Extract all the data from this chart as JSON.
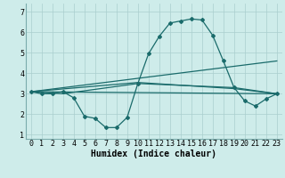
{
  "xlabel": "Humidex (Indice chaleur)",
  "x": [
    0,
    1,
    2,
    3,
    4,
    5,
    6,
    7,
    8,
    9,
    10,
    11,
    12,
    13,
    14,
    15,
    16,
    17,
    18,
    19,
    20,
    21,
    22,
    23
  ],
  "line1": [
    3.1,
    3.0,
    3.0,
    3.1,
    2.8,
    1.9,
    1.8,
    1.35,
    1.35,
    1.85,
    3.5,
    4.95,
    5.8,
    6.45,
    6.55,
    6.65,
    6.6,
    5.85,
    4.6,
    3.3,
    2.65,
    2.4,
    2.75,
    3.0
  ],
  "line2_x": [
    0,
    23
  ],
  "line2_y": [
    3.1,
    3.0
  ],
  "line3_x": [
    0,
    23
  ],
  "line3_y": [
    3.1,
    4.6
  ],
  "line4_x": [
    0,
    10,
    19,
    23
  ],
  "line4_y": [
    3.1,
    3.55,
    3.25,
    3.0
  ],
  "line5_x": [
    0,
    3,
    10,
    19,
    23
  ],
  "line5_y": [
    3.1,
    3.0,
    3.5,
    3.3,
    3.0
  ],
  "ylim": [
    0.8,
    7.4
  ],
  "xlim": [
    -0.5,
    23.5
  ],
  "yticks": [
    1,
    2,
    3,
    4,
    5,
    6,
    7
  ],
  "xticks": [
    0,
    1,
    2,
    3,
    4,
    5,
    6,
    7,
    8,
    9,
    10,
    11,
    12,
    13,
    14,
    15,
    16,
    17,
    18,
    19,
    20,
    21,
    22,
    23
  ],
  "line_color": "#1a6b6b",
  "bg_color": "#ceecea",
  "grid_color": "#aacece",
  "tick_label_fontsize": 6.0,
  "xlabel_fontsize": 7.0
}
